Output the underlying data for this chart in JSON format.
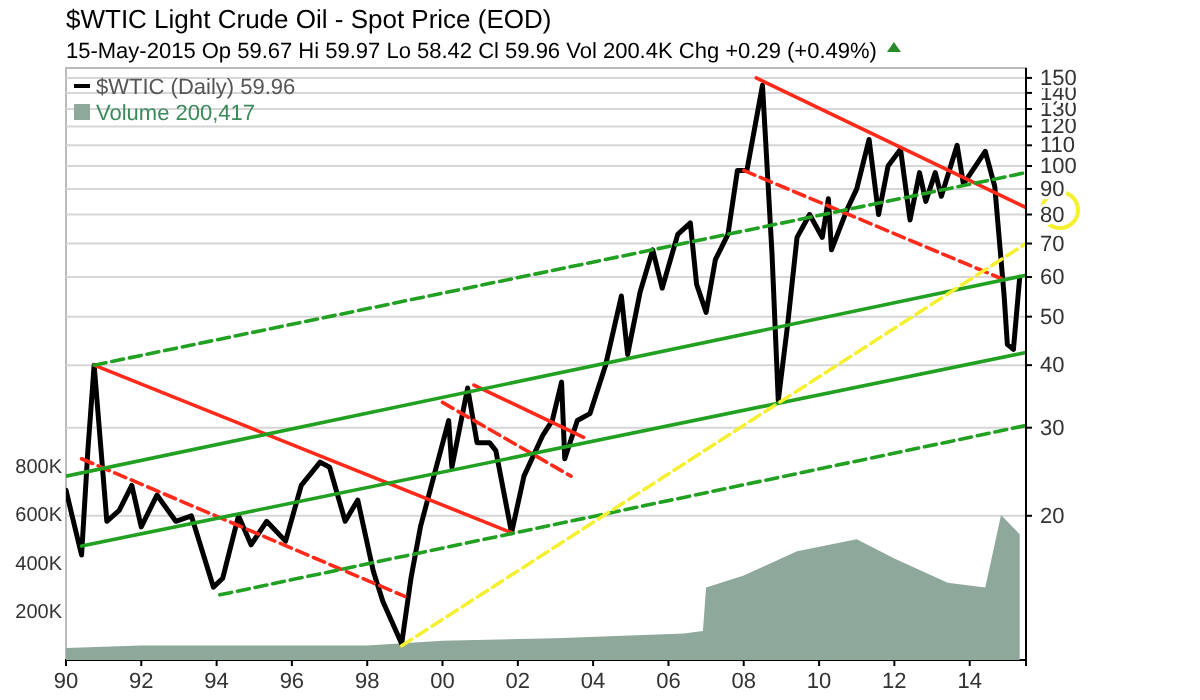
{
  "chart_data": {
    "type": "line",
    "title": "$WTIC Light Crude Oil - Spot Price (EOD)",
    "subtitle": "15-May-2015   Op 59.67  Hi 59.97  Lo 58.42  Cl 59.96  Vol 200.4K  Chg +0.29 (+0.49%)",
    "log": "y",
    "xlim": [
      "1990-01",
      "2015-07"
    ],
    "xticks": [
      {
        "value": "1990-01",
        "label": "90"
      },
      {
        "value": "1992-01",
        "label": "92"
      },
      {
        "value": "1994-01",
        "label": "94"
      },
      {
        "value": "1996-01",
        "label": "96"
      },
      {
        "value": "1998-01",
        "label": "98"
      },
      {
        "value": "2000-01",
        "label": "00"
      },
      {
        "value": "2002-01",
        "label": "02"
      },
      {
        "value": "2004-01",
        "label": "04"
      },
      {
        "value": "2006-01",
        "label": "06"
      },
      {
        "value": "2008-01",
        "label": "08"
      },
      {
        "value": "2010-01",
        "label": "10"
      },
      {
        "value": "2012-01",
        "label": "12"
      },
      {
        "value": "2014-01",
        "label": "14"
      }
    ],
    "ylim": [
      10.3,
      157
    ],
    "yticks": [
      20,
      30,
      40,
      50,
      60,
      70,
      80,
      90,
      100,
      110,
      120,
      130,
      140,
      150
    ],
    "y2lim": [
      0,
      2450000
    ],
    "y2ticks": [
      {
        "value": 200000,
        "label": "200K"
      },
      {
        "value": 400000,
        "label": "400K"
      },
      {
        "value": 600000,
        "label": "600K"
      },
      {
        "value": 800000,
        "label": "800K"
      }
    ],
    "grid": "y",
    "legend": "top left",
    "series": [
      {
        "name": "Volume 200,417",
        "type": "area",
        "axis": "y2",
        "color": "#8fa89c",
        "x": [
          "1990-01",
          "1992-01",
          "1995-01",
          "1998-01",
          "2000-01",
          "2003-01",
          "2006-06",
          "2006-12",
          "2007-01",
          "2008-01",
          "2009-06",
          "2011-01",
          "2012-01",
          "2013-06",
          "2014-06",
          "2014-11",
          "2015-05"
        ],
        "values": [
          50000,
          60000,
          60000,
          60000,
          80000,
          90000,
          110000,
          120000,
          300000,
          350000,
          450000,
          500000,
          420000,
          320000,
          300000,
          600000,
          520000
        ]
      },
      {
        "name": "$WTIC (Daily) 59.96",
        "color": "#000000",
        "x": [
          "1990-01",
          "1990-03",
          "1990-06",
          "1990-08",
          "1990-10",
          "1990-12",
          "1991-02",
          "1991-06",
          "1991-10",
          "1992-01",
          "1992-06",
          "1992-12",
          "1993-05",
          "1993-12",
          "1994-03",
          "1994-08",
          "1994-12",
          "1995-05",
          "1995-11",
          "1996-04",
          "1996-10",
          "1997-01",
          "1997-06",
          "1997-10",
          "1998-03",
          "1998-06",
          "1998-12",
          "1999-03",
          "1999-06",
          "1999-11",
          "2000-03",
          "2000-04",
          "2000-09",
          "2000-12",
          "2001-04",
          "2001-06",
          "2001-11",
          "2002-03",
          "2002-09",
          "2002-12",
          "2003-03",
          "2003-04",
          "2003-08",
          "2003-12",
          "2004-05",
          "2004-10",
          "2004-12",
          "2005-04",
          "2005-08",
          "2005-11",
          "2006-04",
          "2006-08",
          "2006-10",
          "2007-01",
          "2007-04",
          "2007-08",
          "2007-11",
          "2008-02",
          "2008-07",
          "2008-10",
          "2008-12",
          "2009-03",
          "2009-06",
          "2009-10",
          "2010-02",
          "2010-04",
          "2010-05",
          "2010-10",
          "2011-01",
          "2011-05",
          "2011-08",
          "2011-11",
          "2012-03",
          "2012-06",
          "2012-09",
          "2012-11",
          "2013-02",
          "2013-04",
          "2013-09",
          "2013-11",
          "2014-06",
          "2014-09",
          "2014-12",
          "2015-01",
          "2015-03",
          "2015-05"
        ],
        "values": [
          22.5,
          20,
          16.7,
          27,
          40,
          28,
          19.5,
          20.5,
          23,
          19,
          22,
          19.5,
          20,
          14.4,
          15,
          20,
          17.5,
          19.5,
          17.8,
          23,
          25.6,
          25,
          19.5,
          21.5,
          15.5,
          13.5,
          11.1,
          15,
          19,
          25,
          31,
          25,
          36,
          28,
          28,
          27,
          18.5,
          24,
          29,
          31,
          37,
          26,
          31,
          32,
          40,
          55,
          42,
          56,
          68,
          57,
          73,
          77,
          58,
          51,
          65,
          73,
          98,
          98,
          145,
          67,
          34,
          48,
          72,
          80,
          72,
          86,
          68,
          82,
          90,
          113,
          80,
          100,
          108,
          78,
          97,
          85,
          97,
          87,
          110,
          92,
          107,
          91,
          55,
          44,
          43,
          59.96
        ]
      },
      {
        "color": "#ff2a1a",
        "x": [
          "1990-10",
          "2001-11"
        ],
        "values": [
          40,
          18.5
        ]
      },
      {
        "color": "#ff2a1a",
        "line_style": "dashed",
        "x": [
          "1990-06",
          "1999-01"
        ],
        "values": [
          26,
          13.8
        ]
      },
      {
        "color": "#ff2a1a",
        "x": [
          "2000-11",
          "2003-10"
        ],
        "values": [
          36.5,
          28.7
        ]
      },
      {
        "color": "#ff2a1a",
        "line_style": "dashed",
        "x": [
          "2000-01",
          "2003-06"
        ],
        "values": [
          33.7,
          24
        ]
      },
      {
        "color": "#ff2a1a",
        "x": [
          "2008-05",
          "2015-07"
        ],
        "values": [
          150,
          82.6
        ]
      },
      {
        "color": "#ff2a1a",
        "line_style": "dashed",
        "x": [
          "2008-01",
          "2014-11"
        ],
        "values": [
          98,
          59.6
        ]
      },
      {
        "color": "#22a022",
        "x": [
          "1990-01",
          "2015-07"
        ],
        "values": [
          24,
          60.5
        ]
      },
      {
        "color": "#22a022",
        "x": [
          "1990-06",
          "2015-07"
        ],
        "values": [
          17.4,
          42.4
        ]
      },
      {
        "color": "#22a022",
        "line_style": "dashed",
        "x": [
          "1990-10",
          "2015-07"
        ],
        "values": [
          40,
          97
        ]
      },
      {
        "color": "#22a022",
        "line_style": "dashed",
        "x": [
          "1994-02",
          "2015-07"
        ],
        "values": [
          13.9,
          30.3
        ]
      },
      {
        "color": "#f5f032",
        "line_style": "dashed",
        "x": [
          "1998-12",
          "2015-07"
        ],
        "values": [
          11,
          70
        ]
      }
    ]
  }
}
